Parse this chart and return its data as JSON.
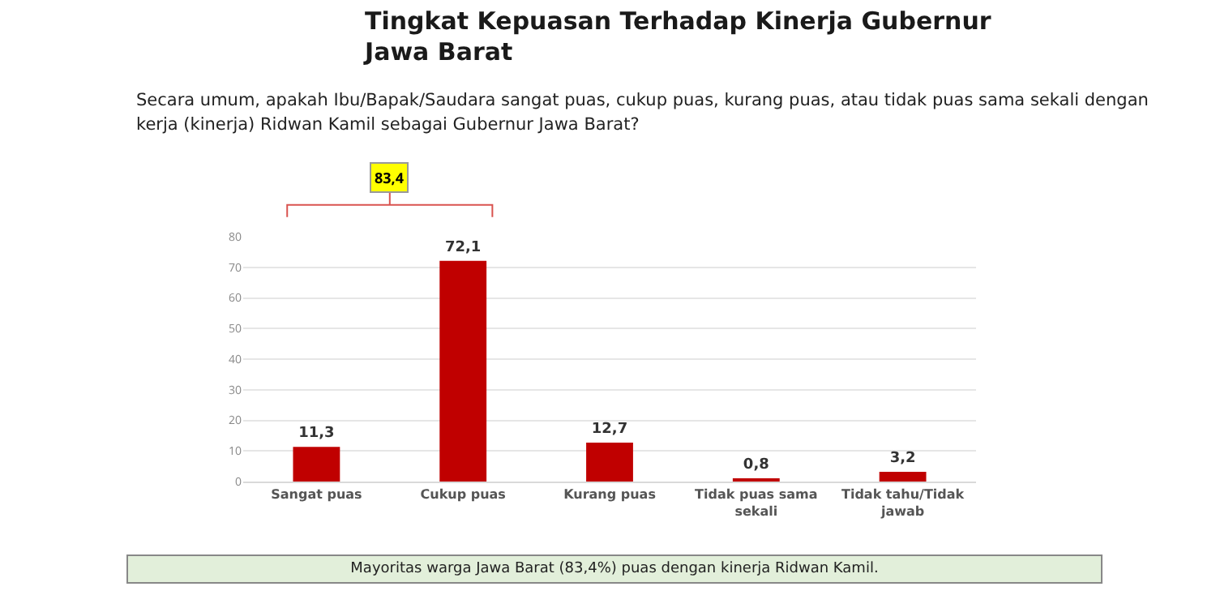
{
  "chart_data": {
    "type": "bar",
    "title": "Tingkat Kepuasan Terhadap Kinerja Gubernur Jawa Barat",
    "subtitle": "Secara umum, apakah Ibu/Bapak/Saudara sangat puas, cukup puas, kurang puas, atau tidak puas sama sekali dengan kerja (kinerja) Ridwan Kamil sebagai Gubernur Jawa Barat?",
    "categories": [
      "Sangat puas",
      "Cukup puas",
      "Kurang puas",
      "Tidak puas sama sekali",
      "Tidak tahu/Tidak jawab"
    ],
    "values": [
      11.3,
      72.1,
      12.7,
      0.8,
      3.2
    ],
    "value_labels": [
      "11,3",
      "72,1",
      "12,7",
      "0,8",
      "3,2"
    ],
    "color": "#c00000",
    "ylim": [
      0,
      80
    ],
    "yticks": [
      0,
      10,
      20,
      30,
      40,
      50,
      60,
      70,
      80
    ],
    "grid": "y",
    "annotations": [
      "83,4",
      "Mayoritas warga Jawa Barat (83,4%) puas dengan kinerja Ridwan Kamil."
    ]
  }
}
